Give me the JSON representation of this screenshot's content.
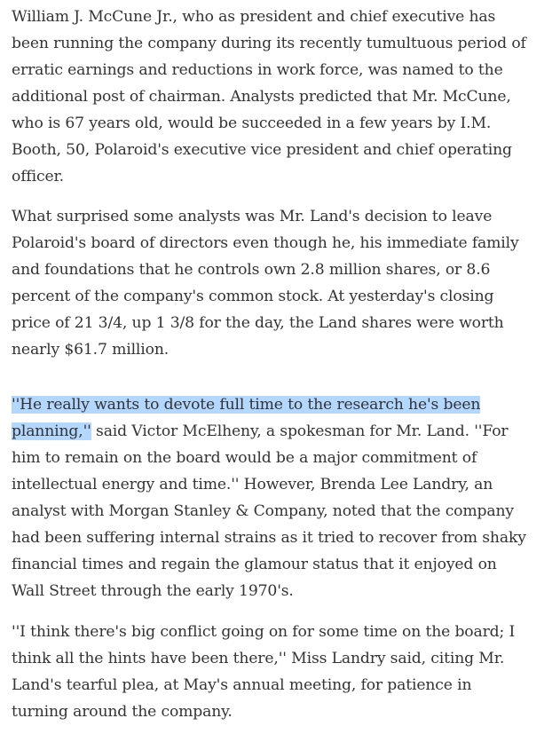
{
  "article": {
    "paragraphs": [
      {
        "lines": [
          "William J. McCune Jr., who as president and chief executive has",
          "been running the company during its recently tumultuous period of",
          "erratic earnings and reductions in work force, was named to the",
          "additional post of chairman. Analysts predicted that Mr. McCune,",
          "who is 67 years old, would be succeeded in a few years by I.M.",
          "Booth, 50, Polaroid's executive vice president and chief operating",
          "officer."
        ]
      },
      {
        "lines": [
          "What surprised some analysts was Mr. Land's decision to leave",
          "Polaroid's board of directors even though he, his immediate family",
          "and foundations that he controls own 2.8 million shares, or 8.6",
          "percent of the company's common stock. At yesterday's closing",
          "price of 21 3/4, up 1 3/8 for the day, the Land shares were worth",
          "nearly $61.7 million."
        ]
      },
      {
        "highlighted_line": "''He really wants to devote full time to the research he's been",
        "highlighted_start": "planning,''",
        "second_line_rest": " said Victor McElheny, a spokesman for Mr. Land. ''For",
        "lines": [
          "him to remain on the board would be a major commitment of",
          "intellectual energy and time.'' However, Brenda Lee Landry, an",
          "analyst with Morgan Stanley & Company, noted that the company",
          "had been suffering internal strains as it tried to recover from shaky",
          "financial times and regain the glamour status that it enjoyed on",
          "Wall Street through the early 1970's."
        ]
      },
      {
        "lines": [
          "''I think there's big conflict going on for some time on the board; I",
          "think all the hints have been there,'' Miss Landry said, citing Mr.",
          "Land's tearful plea, at May's annual meeting, for patience in",
          "turning around the company."
        ]
      }
    ]
  }
}
